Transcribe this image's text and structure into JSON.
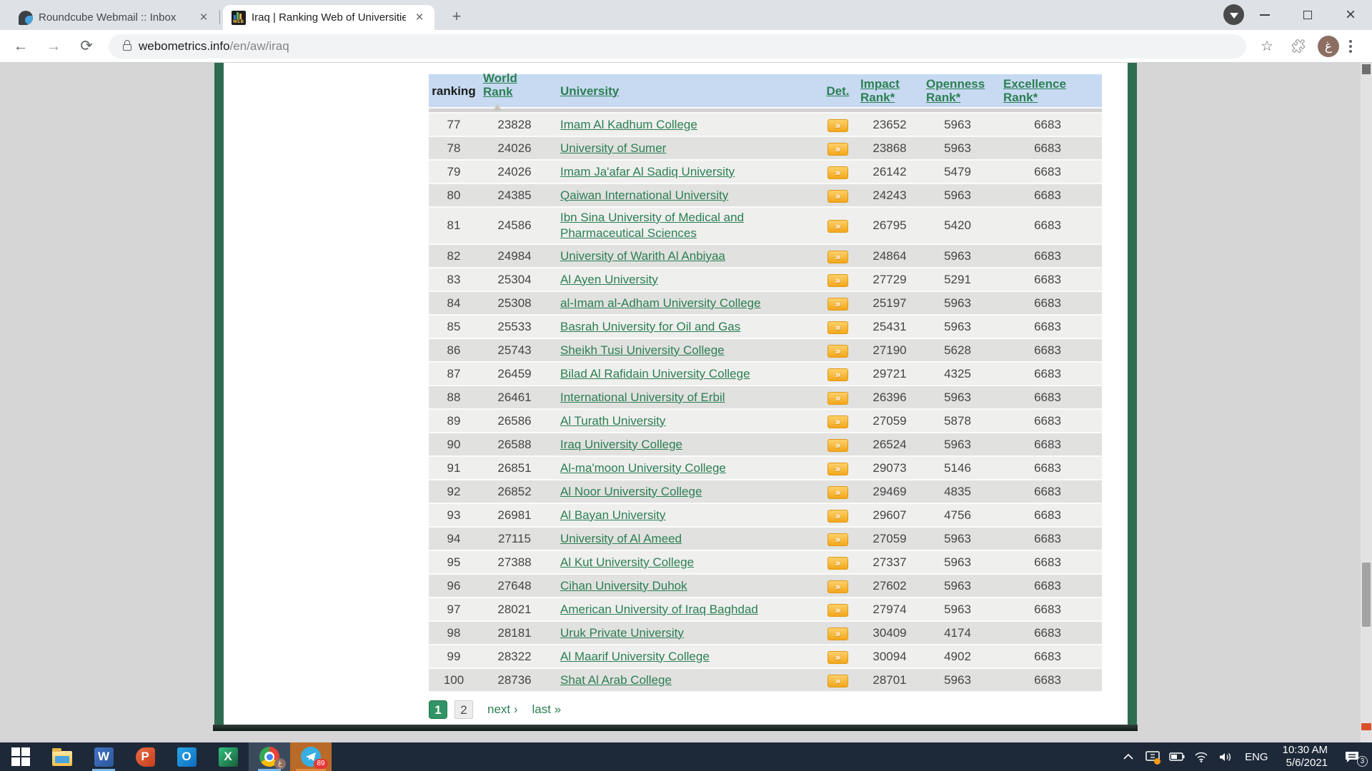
{
  "browser": {
    "tabs": [
      {
        "title": "Roundcube Webmail :: Inbox",
        "close_label": "×"
      },
      {
        "title": "Iraq | Ranking Web of Universitie",
        "close_label": "×"
      }
    ],
    "url": {
      "domain": "webometrics.info",
      "path": "/en/aw/iraq"
    },
    "profile_initial": "غ"
  },
  "page": {
    "table": {
      "headers": {
        "ranking": "ranking",
        "world_rank": "World Rank",
        "university": "University",
        "det": "Det.",
        "impact": "Impact Rank*",
        "openness": "Openness Rank*",
        "excellence": "Excellence Rank*"
      },
      "det_badge": "»",
      "rows": [
        {
          "rank": "77",
          "world": "23828",
          "name": "Imam Al Kadhum College",
          "impact": "23652",
          "open": "5963",
          "excel": "6683"
        },
        {
          "rank": "78",
          "world": "24026",
          "name": "University of Sumer",
          "impact": "23868",
          "open": "5963",
          "excel": "6683"
        },
        {
          "rank": "79",
          "world": "24026",
          "name": "Imam Ja'afar Al Sadiq University",
          "impact": "26142",
          "open": "5479",
          "excel": "6683"
        },
        {
          "rank": "80",
          "world": "24385",
          "name": "Qaiwan International University",
          "impact": "24243",
          "open": "5963",
          "excel": "6683"
        },
        {
          "rank": "81",
          "world": "24586",
          "name": "Ibn Sina University of Medical and Pharmaceutical Sciences",
          "impact": "26795",
          "open": "5420",
          "excel": "6683"
        },
        {
          "rank": "82",
          "world": "24984",
          "name": "University of Warith Al Anbiyaa",
          "impact": "24864",
          "open": "5963",
          "excel": "6683"
        },
        {
          "rank": "83",
          "world": "25304",
          "name": "Al Ayen University",
          "impact": "27729",
          "open": "5291",
          "excel": "6683"
        },
        {
          "rank": "84",
          "world": "25308",
          "name": "al-Imam al-Adham University College",
          "impact": "25197",
          "open": "5963",
          "excel": "6683"
        },
        {
          "rank": "85",
          "world": "25533",
          "name": "Basrah University for Oil and Gas",
          "impact": "25431",
          "open": "5963",
          "excel": "6683"
        },
        {
          "rank": "86",
          "world": "25743",
          "name": "Sheikh Tusi University College",
          "impact": "27190",
          "open": "5628",
          "excel": "6683"
        },
        {
          "rank": "87",
          "world": "26459",
          "name": "Bilad Al Rafidain University College",
          "impact": "29721",
          "open": "4325",
          "excel": "6683"
        },
        {
          "rank": "88",
          "world": "26461",
          "name": "International University of Erbil",
          "impact": "26396",
          "open": "5963",
          "excel": "6683"
        },
        {
          "rank": "89",
          "world": "26586",
          "name": "Al Turath University",
          "impact": "27059",
          "open": "5878",
          "excel": "6683"
        },
        {
          "rank": "90",
          "world": "26588",
          "name": "Iraq University College",
          "impact": "26524",
          "open": "5963",
          "excel": "6683"
        },
        {
          "rank": "91",
          "world": "26851",
          "name": "Al-ma'moon University College",
          "impact": "29073",
          "open": "5146",
          "excel": "6683"
        },
        {
          "rank": "92",
          "world": "26852",
          "name": "Al Noor University College",
          "impact": "29469",
          "open": "4835",
          "excel": "6683"
        },
        {
          "rank": "93",
          "world": "26981",
          "name": "Al Bayan University",
          "impact": "29607",
          "open": "4756",
          "excel": "6683"
        },
        {
          "rank": "94",
          "world": "27115",
          "name": "University of Al Ameed",
          "impact": "27059",
          "open": "5963",
          "excel": "6683"
        },
        {
          "rank": "95",
          "world": "27388",
          "name": "Al Kut University College",
          "impact": "27337",
          "open": "5963",
          "excel": "6683"
        },
        {
          "rank": "96",
          "world": "27648",
          "name": "Cihan University Duhok",
          "impact": "27602",
          "open": "5963",
          "excel": "6683"
        },
        {
          "rank": "97",
          "world": "28021",
          "name": "American University of Iraq Baghdad",
          "impact": "27974",
          "open": "5963",
          "excel": "6683"
        },
        {
          "rank": "98",
          "world": "28181",
          "name": "Uruk Private University",
          "impact": "30409",
          "open": "4174",
          "excel": "6683"
        },
        {
          "rank": "99",
          "world": "28322",
          "name": "Al Maarif University College",
          "impact": "30094",
          "open": "4902",
          "excel": "6683"
        },
        {
          "rank": "100",
          "world": "28736",
          "name": "Shat Al Arab College",
          "impact": "28701",
          "open": "5963",
          "excel": "6683"
        }
      ]
    },
    "pagination": {
      "current": "1",
      "page_two": "2",
      "next": "next ›",
      "last": "last »"
    }
  },
  "taskbar": {
    "telegram_badge": "89",
    "word_label": "W",
    "ppt_label": "P",
    "outlook_label": "O",
    "excel_label": "X",
    "chrome_profile_initial": "غ",
    "tray": {
      "language": "ENG",
      "time": "10:30 AM",
      "date": "5/6/2021",
      "notification_count": "3"
    }
  }
}
